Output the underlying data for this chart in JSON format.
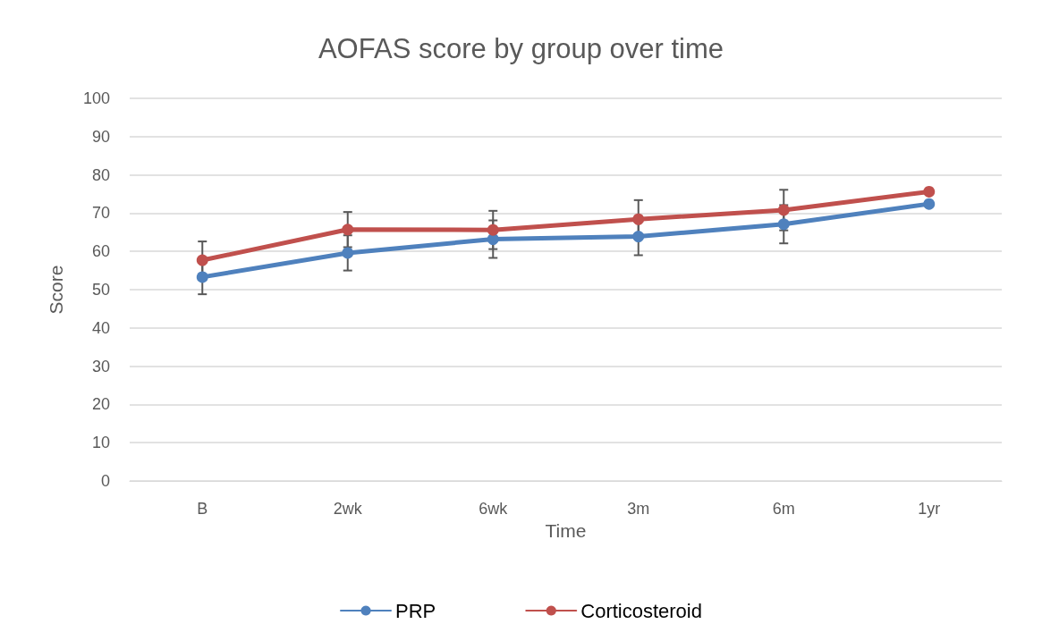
{
  "chart_data": {
    "type": "line",
    "title": "AOFAS score by group over time",
    "xlabel": "Time",
    "ylabel": "Score",
    "categories": [
      "B",
      "2wk",
      "6wk",
      "3m",
      "6m",
      "1yr"
    ],
    "series": [
      {
        "name": "PRP",
        "color": "#4f81bd",
        "values": [
          53.3,
          59.6,
          63.2,
          63.9,
          67.1,
          72.4
        ],
        "errors": [
          4.5,
          4.6,
          4.9,
          4.9,
          5.0,
          null
        ]
      },
      {
        "name": "Corticosteroid",
        "color": "#c0504d",
        "values": [
          57.7,
          65.7,
          65.6,
          68.4,
          70.8,
          75.6
        ],
        "errors": [
          4.9,
          4.6,
          5.0,
          5.0,
          5.3,
          null
        ]
      }
    ],
    "ylim": [
      0,
      100
    ],
    "yticks": [
      0,
      10,
      20,
      30,
      40,
      50,
      60,
      70,
      80,
      90,
      100
    ],
    "grid": "y",
    "legend": "bottom",
    "marker": "circle",
    "line_style": "solid"
  }
}
